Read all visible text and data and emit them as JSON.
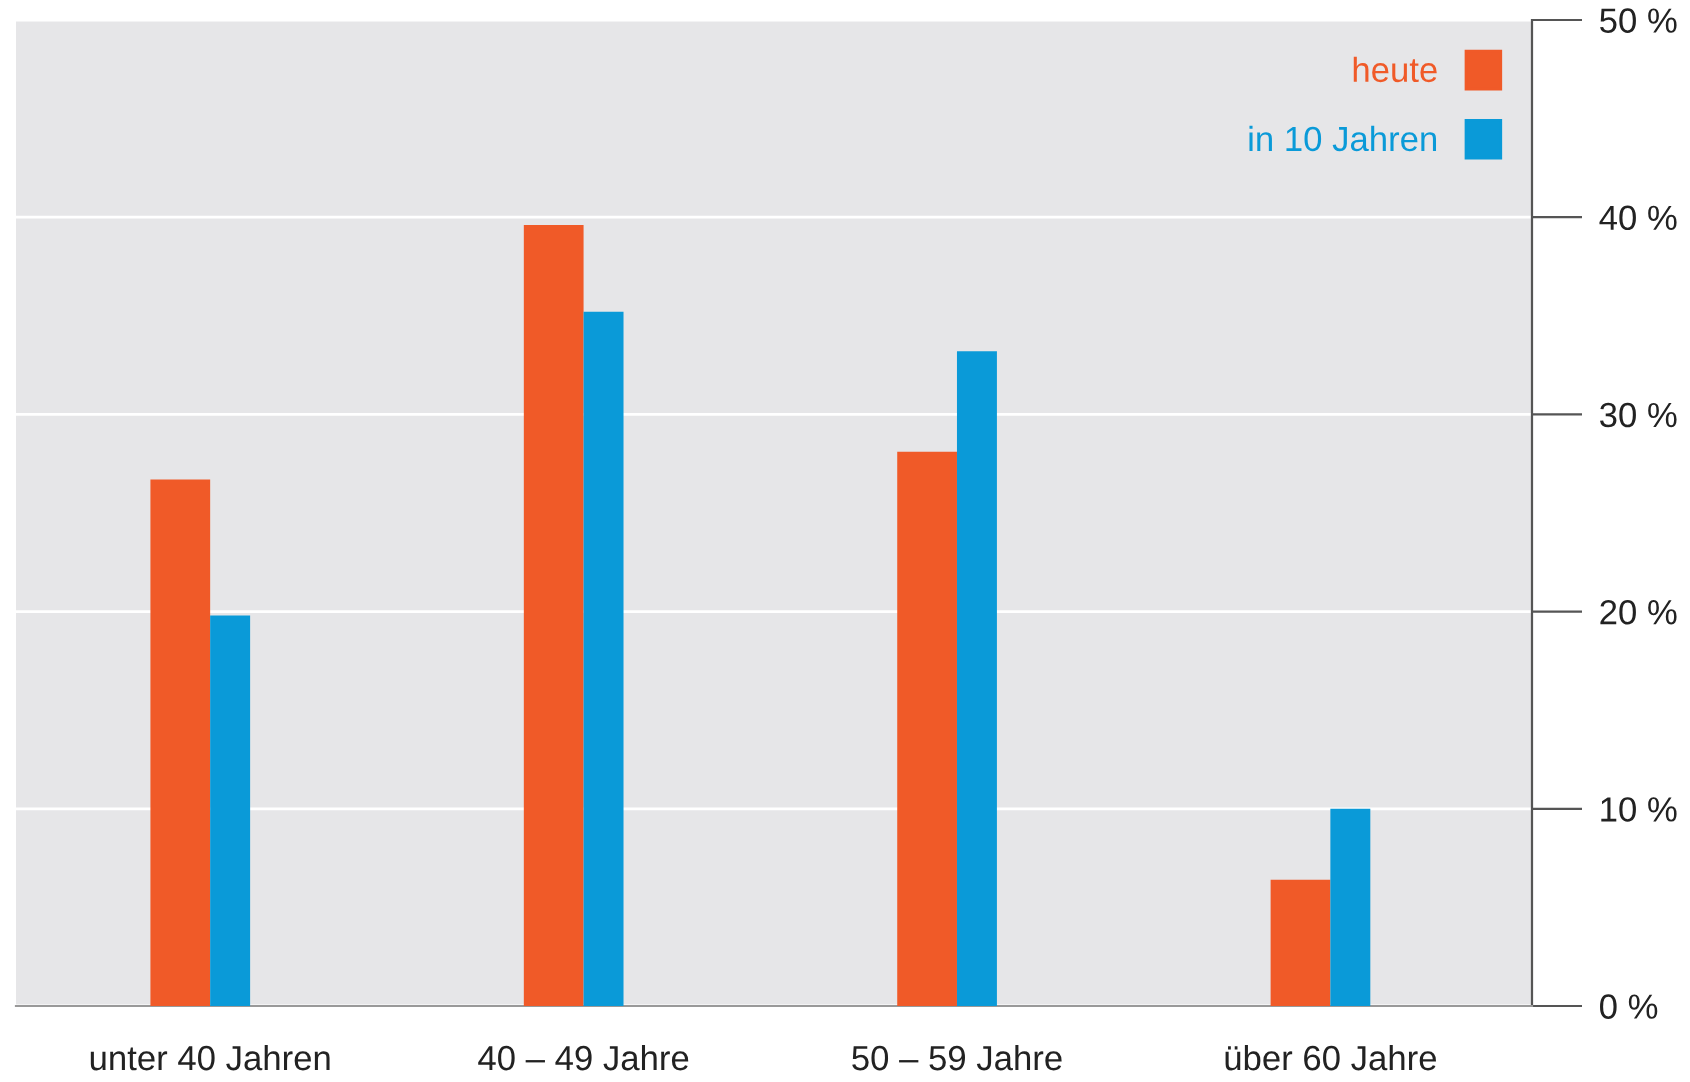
{
  "chart_data": {
    "type": "bar",
    "categories": [
      "unter 40 Jahren",
      "40 – 49 Jahre",
      "50 – 59 Jahre",
      "über 60 Jahre"
    ],
    "series": [
      {
        "name": "heute",
        "color": "#f05a28",
        "values": [
          26.7,
          39.6,
          28.1,
          6.4
        ]
      },
      {
        "name": "in 10 Jahren",
        "color": "#0a9ad8",
        "values": [
          19.8,
          35.2,
          33.2,
          10
        ]
      }
    ],
    "ylim": [
      0,
      50
    ],
    "yticks": [
      {
        "value": 0,
        "label": "0 %"
      },
      {
        "value": 10,
        "label": "10 %"
      },
      {
        "value": 20,
        "label": "20 %"
      },
      {
        "value": 30,
        "label": "30 %"
      },
      {
        "value": 40,
        "label": "40 %"
      },
      {
        "value": 50,
        "label": "50 %"
      }
    ],
    "grid": "y",
    "legend": "top right"
  }
}
